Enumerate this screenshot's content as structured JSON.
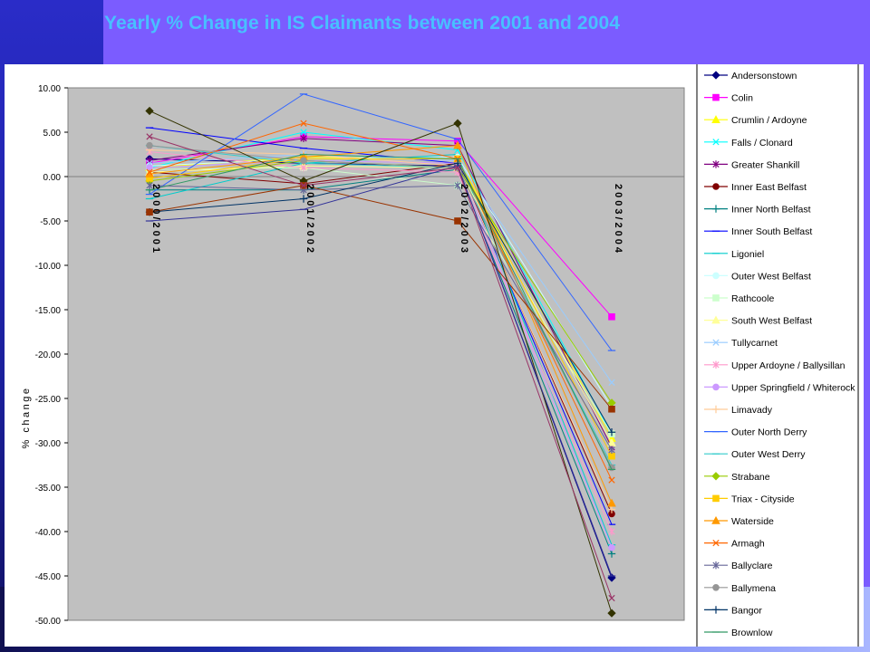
{
  "slide": {
    "title": "Yearly % Change in IS Claimants between 2001 and 2004"
  },
  "colors": {
    "background": "#7b5cff",
    "title": "#48c0ff",
    "plot_area": "#c0c0c0"
  },
  "chart_data": {
    "type": "line",
    "title": "",
    "xlabel": "",
    "ylabel": "% change",
    "ylim": [
      -50,
      10
    ],
    "ytick_step": 5,
    "grid": false,
    "legend_position": "right",
    "categories": [
      "2000/2001",
      "2001/2002",
      "2002/2003",
      "2003/2004"
    ],
    "series": [
      {
        "name": "Andersonstown",
        "color": "#000080",
        "marker": "diamond",
        "values": [
          2.0,
          1.5,
          1.2,
          -45.2
        ]
      },
      {
        "name": "Colin",
        "color": "#ff00ff",
        "marker": "square",
        "values": [
          1.5,
          4.5,
          4.0,
          -15.8
        ]
      },
      {
        "name": "Crumlin / Ardoyne",
        "color": "#ffff00",
        "marker": "triangle",
        "values": [
          1.0,
          2.2,
          2.0,
          -29.5
        ]
      },
      {
        "name": "Falls / Clonard",
        "color": "#00ffff",
        "marker": "x",
        "values": [
          1.0,
          5.0,
          3.0,
          -29.0
        ]
      },
      {
        "name": "Greater Shankill",
        "color": "#800080",
        "marker": "star",
        "values": [
          1.8,
          4.3,
          3.5,
          -30.5
        ]
      },
      {
        "name": "Inner East Belfast",
        "color": "#800000",
        "marker": "circle",
        "values": [
          0.5,
          -0.8,
          1.5,
          -38.0
        ]
      },
      {
        "name": "Inner North Belfast",
        "color": "#008080",
        "marker": "plus",
        "values": [
          -1.5,
          -1.5,
          0.8,
          -42.5
        ]
      },
      {
        "name": "Inner South Belfast",
        "color": "#0000ff",
        "marker": "dash",
        "values": [
          5.5,
          3.2,
          1.5,
          -39.2
        ]
      },
      {
        "name": "Ligoniel",
        "color": "#00cccc",
        "marker": "dash",
        "values": [
          -2.5,
          1.5,
          2.5,
          -41.5
        ]
      },
      {
        "name": "Outer West Belfast",
        "color": "#ccffff",
        "marker": "circle",
        "values": [
          1.2,
          2.0,
          2.2,
          -26.0
        ]
      },
      {
        "name": "Rathcoole",
        "color": "#ccffcc",
        "marker": "square",
        "values": [
          0.8,
          1.0,
          -1.0,
          -29.0
        ]
      },
      {
        "name": "South West Belfast",
        "color": "#ffff99",
        "marker": "triangle",
        "values": [
          0.5,
          1.2,
          1.0,
          -30.0
        ]
      },
      {
        "name": "Tullycarnet",
        "color": "#99ccff",
        "marker": "x",
        "values": [
          1.5,
          2.5,
          1.8,
          -23.2
        ]
      },
      {
        "name": "Upper Ardoyne / Ballysillan",
        "color": "#ff99cc",
        "marker": "star",
        "values": [
          2.8,
          1.0,
          0.5,
          -40.0
        ]
      },
      {
        "name": "Upper Springfield / Whiterock",
        "color": "#cc99ff",
        "marker": "circle",
        "values": [
          1.0,
          1.8,
          1.5,
          -41.8
        ]
      },
      {
        "name": "Limavady",
        "color": "#ffcc99",
        "marker": "plus",
        "values": [
          3.0,
          2.5,
          1.2,
          -37.5
        ]
      },
      {
        "name": "Outer North Derry",
        "color": "#3366ff",
        "marker": "dash",
        "values": [
          -2.0,
          9.3,
          4.2,
          -19.6
        ]
      },
      {
        "name": "Outer West Derry",
        "color": "#33cccc",
        "marker": "dash",
        "values": [
          3.5,
          1.5,
          1.0,
          -32.5
        ]
      },
      {
        "name": "Strabane",
        "color": "#99cc00",
        "marker": "diamond",
        "values": [
          -0.5,
          1.8,
          1.0,
          -25.5
        ]
      },
      {
        "name": "Triax - Cityside",
        "color": "#ffcc00",
        "marker": "square",
        "values": [
          -0.2,
          2.0,
          2.0,
          -31.5
        ]
      },
      {
        "name": "Waterside",
        "color": "#ff9900",
        "marker": "triangle",
        "values": [
          0.3,
          2.2,
          3.5,
          -36.8
        ]
      },
      {
        "name": "Armagh",
        "color": "#ff6600",
        "marker": "x",
        "values": [
          0.5,
          6.0,
          2.0,
          -34.2
        ]
      },
      {
        "name": "Ballyclare",
        "color": "#666699",
        "marker": "star",
        "values": [
          -1.0,
          -1.5,
          -1.0,
          -30.8
        ]
      },
      {
        "name": "Ballymena",
        "color": "#969696",
        "marker": "circle",
        "values": [
          3.5,
          1.8,
          1.0,
          -32.8
        ]
      },
      {
        "name": "Bangor",
        "color": "#003366",
        "marker": "plus",
        "values": [
          -4.0,
          -2.5,
          1.5,
          -28.8
        ]
      },
      {
        "name": "Brownlow",
        "color": "#339966",
        "marker": "dash",
        "values": [
          -1.5,
          2.5,
          2.0,
          -33.0
        ]
      },
      {
        "name": "",
        "color": "#333300",
        "marker": "diamond",
        "values": [
          7.4,
          -0.5,
          6.0,
          -49.2
        ]
      },
      {
        "name": "",
        "color": "#993300",
        "marker": "square",
        "values": [
          -4.0,
          -1.0,
          -5.0,
          -26.2
        ]
      },
      {
        "name": "",
        "color": "#333399",
        "marker": "dash",
        "values": [
          -5.0,
          -3.7,
          1.2,
          -45.0
        ]
      },
      {
        "name": "",
        "color": "#993366",
        "marker": "x",
        "values": [
          4.5,
          -1.0,
          1.0,
          -47.5
        ]
      }
    ]
  }
}
